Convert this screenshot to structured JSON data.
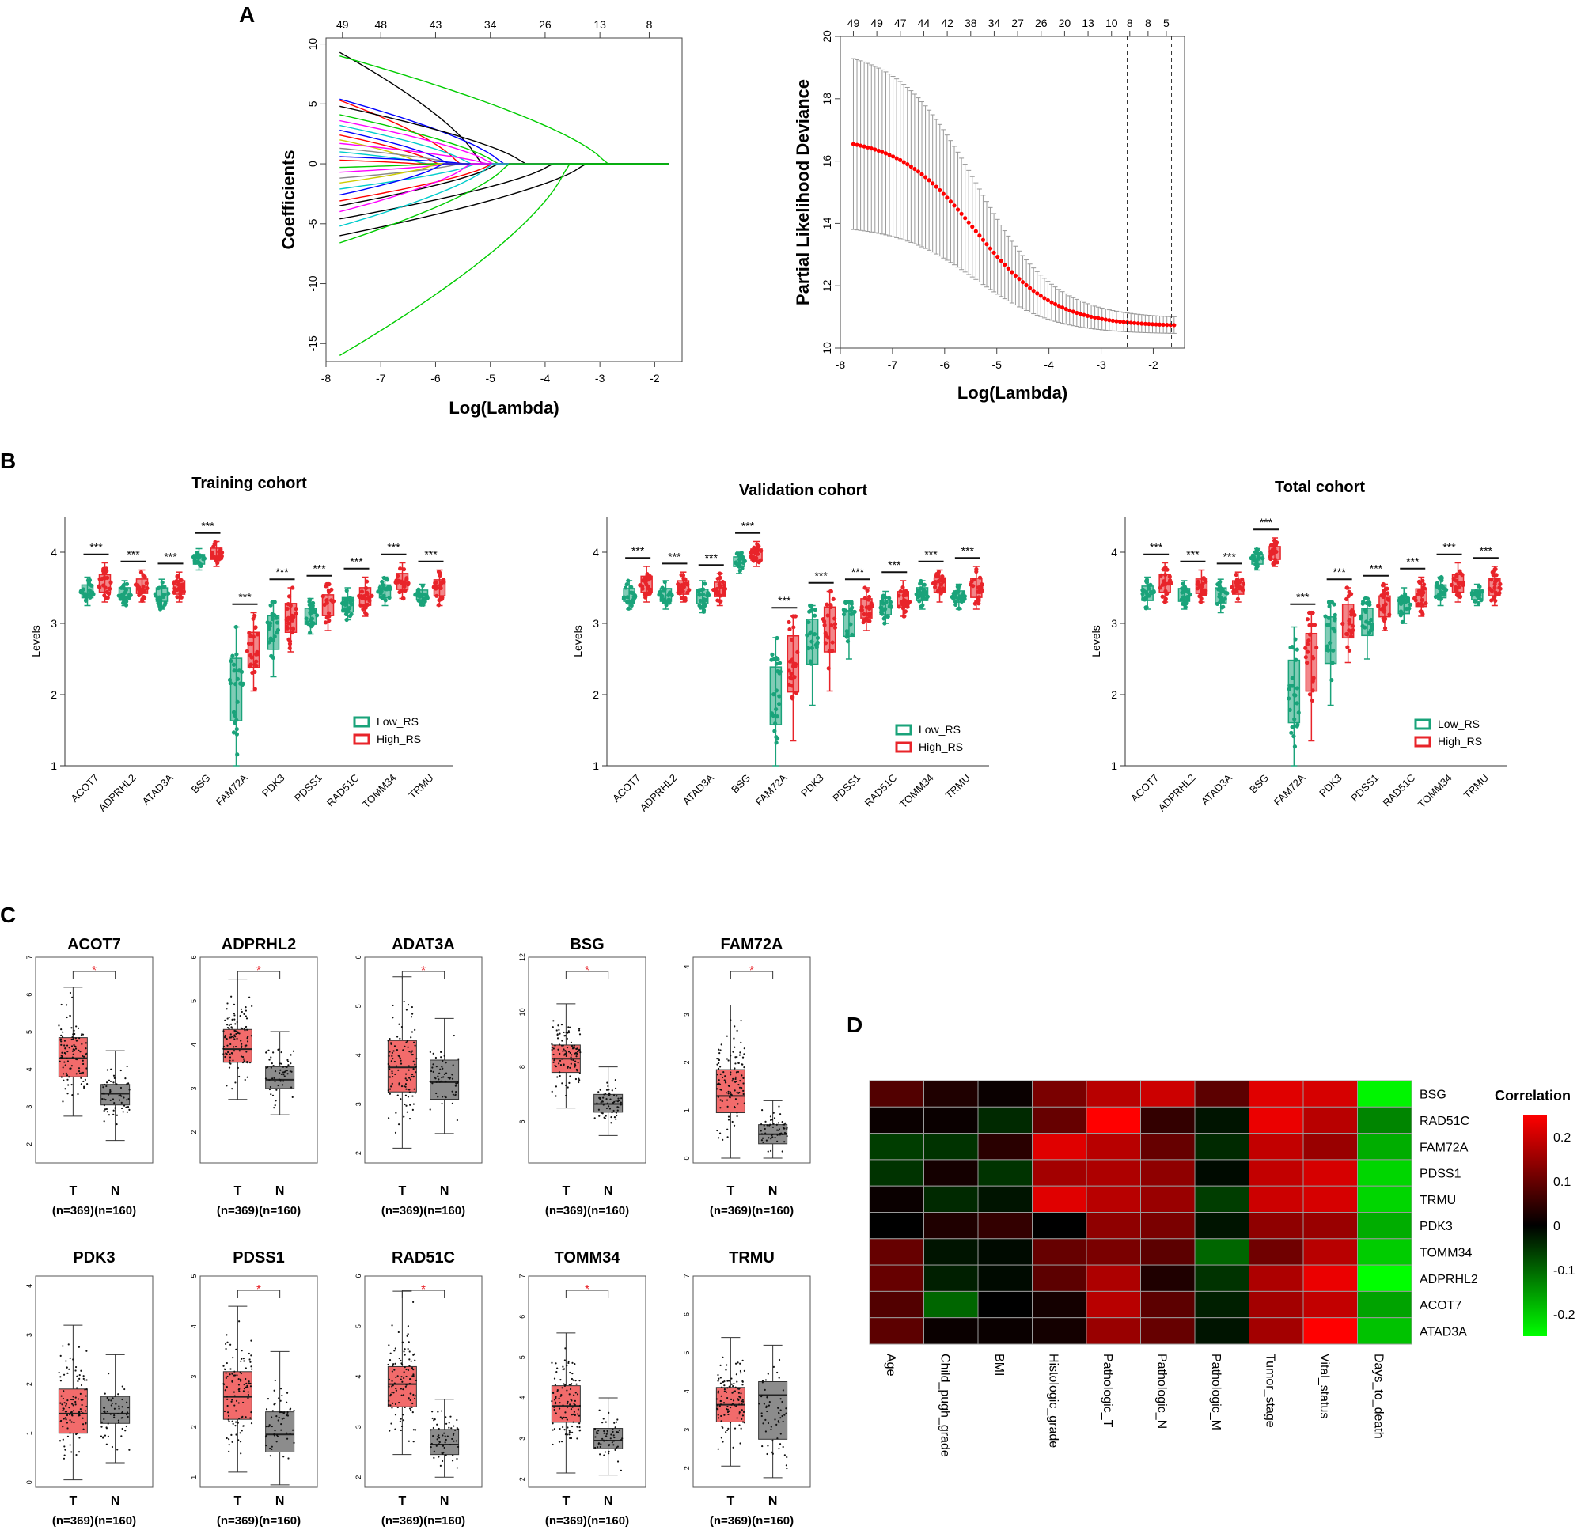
{
  "panel_labels": {
    "A": "A",
    "B": "B",
    "C": "C",
    "D": "D"
  },
  "chart_data": [
    {
      "id": "A-left",
      "type": "line",
      "title": "",
      "xlabel": "Log(Lambda)",
      "ylabel": "Coefficients",
      "xlim": [
        -8,
        -1.5
      ],
      "ylim": [
        -16.5,
        10.5
      ],
      "x_ticks": [
        "-8",
        "-7",
        "-6",
        "-5",
        "-4",
        "-3",
        "-2"
      ],
      "y_ticks": [
        "-15",
        "-10",
        "-5",
        "0",
        "5",
        "10"
      ],
      "top_axis_labels": [
        "49",
        "48",
        "43",
        "34",
        "26",
        "13",
        "8"
      ],
      "top_axis_positions": [
        -7.7,
        -7.0,
        -6.0,
        -5.0,
        -4.0,
        -3.0,
        -2.1
      ],
      "path_colors": [
        "#000000",
        "#ff0000",
        "#00cc00",
        "#0000ff",
        "#00cccc",
        "#ff00ff",
        "#cccc00",
        "#888888"
      ],
      "paths": [
        {
          "start": 9.3,
          "decay": -5.2,
          "color": "#000000"
        },
        {
          "start": 9.0,
          "decay": -2.9,
          "color": "#00cc00"
        },
        {
          "start": 5.4,
          "decay": -4.8,
          "color": "#0000ff"
        },
        {
          "start": 5.3,
          "decay": -5.6,
          "color": "#ff0000"
        },
        {
          "start": 4.8,
          "decay": -4.4,
          "color": "#000000"
        },
        {
          "start": 4.1,
          "decay": -4.9,
          "color": "#00cc00"
        },
        {
          "start": 3.6,
          "decay": -5.0,
          "color": "#ff00ff"
        },
        {
          "start": 3.2,
          "decay": -5.4,
          "color": "#00cccc"
        },
        {
          "start": 2.8,
          "decay": -5.8,
          "color": "#0000ff"
        },
        {
          "start": 2.4,
          "decay": -6.0,
          "color": "#ff0000"
        },
        {
          "start": 2.0,
          "decay": -6.3,
          "color": "#cccc00"
        },
        {
          "start": 1.7,
          "decay": -5.1,
          "color": "#ff00ff"
        },
        {
          "start": 1.3,
          "decay": -5.7,
          "color": "#888888"
        },
        {
          "start": 1.0,
          "decay": -6.2,
          "color": "#00cccc"
        },
        {
          "start": 0.6,
          "decay": -5.5,
          "color": "#0000ff"
        },
        {
          "start": 0.3,
          "decay": -6.4,
          "color": "#ff0000"
        },
        {
          "start": -0.3,
          "decay": -6.1,
          "color": "#00cc00"
        },
        {
          "start": -0.7,
          "decay": -5.8,
          "color": "#ff00ff"
        },
        {
          "start": -1.2,
          "decay": -5.6,
          "color": "#888888"
        },
        {
          "start": -1.6,
          "decay": -6.0,
          "color": "#cccc00"
        },
        {
          "start": -2.1,
          "decay": -5.3,
          "color": "#00cccc"
        },
        {
          "start": -2.6,
          "decay": -5.9,
          "color": "#0000ff"
        },
        {
          "start": -3.1,
          "decay": -5.0,
          "color": "#ff0000"
        },
        {
          "start": -3.5,
          "decay": -4.9,
          "color": "#000000"
        },
        {
          "start": -4.0,
          "decay": -5.4,
          "color": "#ff00ff"
        },
        {
          "start": -4.6,
          "decay": -3.9,
          "color": "#000000"
        },
        {
          "start": -5.2,
          "decay": -5.0,
          "color": "#00cccc"
        },
        {
          "start": -6.0,
          "decay": -3.3,
          "color": "#000000"
        },
        {
          "start": -6.6,
          "decay": -4.7,
          "color": "#00cc00"
        },
        {
          "start": -16.0,
          "decay": -3.6,
          "color": "#00cc00"
        }
      ]
    },
    {
      "id": "A-right",
      "type": "line",
      "title": "",
      "xlabel": "Log(Lambda)",
      "ylabel": "Partial Likelihood Deviance",
      "xlim": [
        -8,
        -1.4
      ],
      "ylim": [
        10,
        20
      ],
      "x_ticks": [
        "-8",
        "-7",
        "-6",
        "-5",
        "-4",
        "-3",
        "-2"
      ],
      "y_ticks": [
        "10",
        "12",
        "14",
        "16",
        "18",
        "20"
      ],
      "top_axis_labels": [
        "49",
        "49",
        "47",
        "44",
        "42",
        "38",
        "34",
        "27",
        "26",
        "20",
        "13",
        "10",
        "8",
        "8",
        "5"
      ],
      "top_axis_positions": [
        -7.75,
        -7.3,
        -6.85,
        -6.4,
        -5.95,
        -5.5,
        -5.05,
        -4.6,
        -4.15,
        -3.7,
        -3.25,
        -2.8,
        -2.45,
        -2.1,
        -1.75
      ],
      "cv_x": [
        -7.75,
        -1.6
      ],
      "cv_mean_start": 16.8,
      "cv_mean_end": 10.7,
      "cv_min_lambda": -2.5,
      "cv_1se_lambda": -1.65,
      "mean_color": "#ff0000",
      "error_bar_color": "#999999"
    },
    {
      "id": "B-training",
      "type": "box",
      "title": "Training cohort",
      "ylabel": "Levels",
      "ylim": [
        1,
        4.5
      ],
      "y_ticks": [
        "1",
        "2",
        "3",
        "4"
      ],
      "categories": [
        "ACOT7",
        "ADPRHL2",
        "ATAD3A",
        "BSG",
        "FAM72A",
        "PDK3",
        "PDSS1",
        "RAD51C",
        "TOMM34",
        "TRMU"
      ],
      "significance": [
        "***",
        "***",
        "***",
        "***",
        "***",
        "***",
        "***",
        "***",
        "***",
        "***"
      ],
      "series": [
        {
          "name": "Low_RS",
          "color": "#1aa37a",
          "medians": [
            3.45,
            3.42,
            3.4,
            3.9,
            2.15,
            2.95,
            3.1,
            3.25,
            3.45,
            3.4
          ],
          "lows": [
            3.25,
            3.25,
            3.2,
            3.75,
            1.0,
            2.25,
            2.85,
            3.05,
            3.25,
            3.25
          ],
          "highs": [
            3.65,
            3.6,
            3.62,
            4.05,
            2.95,
            3.3,
            3.35,
            3.5,
            3.65,
            3.55
          ]
        },
        {
          "name": "High_RS",
          "color": "#e8242a",
          "medians": [
            3.55,
            3.52,
            3.5,
            3.98,
            2.65,
            3.1,
            3.28,
            3.38,
            3.58,
            3.5
          ],
          "lows": [
            3.3,
            3.3,
            3.3,
            3.8,
            2.05,
            2.6,
            2.9,
            3.1,
            3.35,
            3.25
          ],
          "highs": [
            3.85,
            3.75,
            3.72,
            4.15,
            3.15,
            3.5,
            3.55,
            3.65,
            3.85,
            3.75
          ]
        }
      ]
    },
    {
      "id": "B-validation",
      "type": "box",
      "title": "Validation cohort",
      "ylabel": "Levels",
      "ylim": [
        1,
        4.5
      ],
      "y_ticks": [
        "1",
        "2",
        "3",
        "4"
      ],
      "categories": [
        "ACOT7",
        "ADPRHL2",
        "ATAD3A",
        "BSG",
        "FAM72A",
        "PDK3",
        "PDSS1",
        "RAD51C",
        "TOMM34",
        "TRMU"
      ],
      "significance": [
        "***",
        "***",
        "***",
        "***",
        "***",
        "***",
        "***",
        "***",
        "***",
        "***"
      ],
      "series": [
        {
          "name": "Low_RS",
          "color": "#1aa37a",
          "medians": [
            3.4,
            3.4,
            3.38,
            3.88,
            2.05,
            2.9,
            3.08,
            3.22,
            3.42,
            3.38
          ],
          "lows": [
            3.2,
            3.2,
            3.15,
            3.7,
            1.0,
            1.85,
            2.5,
            3.0,
            3.2,
            3.2
          ],
          "highs": [
            3.6,
            3.6,
            3.6,
            4.0,
            2.8,
            3.25,
            3.3,
            3.45,
            3.6,
            3.55
          ]
        },
        {
          "name": "High_RS",
          "color": "#e8242a",
          "medians": [
            3.55,
            3.5,
            3.48,
            3.96,
            2.6,
            3.05,
            3.22,
            3.32,
            3.55,
            3.5
          ],
          "lows": [
            3.3,
            3.3,
            3.25,
            3.8,
            1.35,
            2.05,
            2.9,
            3.1,
            3.3,
            3.2
          ],
          "highs": [
            3.8,
            3.72,
            3.7,
            4.15,
            3.1,
            3.45,
            3.5,
            3.6,
            3.75,
            3.8
          ]
        }
      ]
    },
    {
      "id": "B-total",
      "type": "box",
      "title": "Total  cohort",
      "ylabel": "Levels",
      "ylim": [
        1,
        4.5
      ],
      "y_ticks": [
        "1",
        "2",
        "3",
        "4"
      ],
      "categories": [
        "ACOT7",
        "ADPRHL2",
        "ATAD3A",
        "BSG",
        "FAM72A",
        "PDK3",
        "PDSS1",
        "RAD51C",
        "TOMM34",
        "TRMU"
      ],
      "significance": [
        "***",
        "***",
        "***",
        "***",
        "***",
        "***",
        "***",
        "***",
        "***",
        "***"
      ],
      "series": [
        {
          "name": "Low_RS",
          "color": "#1aa37a",
          "medians": [
            3.42,
            3.4,
            3.4,
            3.9,
            2.1,
            2.92,
            3.1,
            3.25,
            3.45,
            3.4
          ],
          "lows": [
            3.2,
            3.2,
            3.15,
            3.75,
            1.0,
            1.85,
            2.5,
            3.0,
            3.25,
            3.25
          ],
          "highs": [
            3.65,
            3.6,
            3.62,
            4.05,
            2.95,
            3.3,
            3.35,
            3.5,
            3.65,
            3.55
          ]
        },
        {
          "name": "High_RS",
          "color": "#e8242a",
          "medians": [
            3.55,
            3.52,
            3.5,
            3.98,
            2.62,
            3.08,
            3.25,
            3.35,
            3.55,
            3.5
          ],
          "lows": [
            3.3,
            3.3,
            3.3,
            3.8,
            1.35,
            2.45,
            2.9,
            3.1,
            3.3,
            3.25
          ],
          "highs": [
            3.85,
            3.75,
            3.72,
            4.2,
            3.15,
            3.5,
            3.55,
            3.65,
            3.85,
            3.8
          ]
        }
      ]
    },
    {
      "id": "C",
      "type": "box",
      "groups": [
        "T",
        "N"
      ],
      "group_counts": [
        "(n=369)",
        "(n=160)"
      ],
      "group_colors": {
        "T": "#f26b6b",
        "N": "#8c8c8c"
      },
      "panels": [
        {
          "gene": "ACOT7",
          "sig": "*",
          "ymax": 7,
          "ymin": 1.5,
          "y_ticks": [
            "2",
            "3",
            "4",
            "5",
            "6",
            "7"
          ],
          "T": {
            "q1": 3.8,
            "med": 4.3,
            "q3": 4.85,
            "lo": 2.75,
            "hi": 6.2
          },
          "N": {
            "q1": 3.05,
            "med": 3.35,
            "q3": 3.6,
            "lo": 2.1,
            "hi": 4.5
          }
        },
        {
          "gene": "ADPRHL2",
          "sig": "*",
          "ymax": 6,
          "ymin": 1.3,
          "y_ticks": [
            "2",
            "3",
            "4",
            "5",
            "6"
          ],
          "T": {
            "q1": 3.6,
            "med": 3.9,
            "q3": 4.35,
            "lo": 2.75,
            "hi": 5.5
          },
          "N": {
            "q1": 3.0,
            "med": 3.2,
            "q3": 3.5,
            "lo": 2.4,
            "hi": 4.3
          }
        },
        {
          "gene": "ADAT3A",
          "sig": "*",
          "ymax": 6,
          "ymin": 1.8,
          "y_ticks": [
            "2",
            "3",
            "4",
            "5",
            "6"
          ],
          "T": {
            "q1": 3.25,
            "med": 3.75,
            "q3": 4.3,
            "lo": 2.1,
            "hi": 5.6
          },
          "N": {
            "q1": 3.1,
            "med": 3.45,
            "q3": 3.9,
            "lo": 2.4,
            "hi": 4.75
          }
        },
        {
          "gene": "BSG",
          "sig": "*",
          "ymax": 12,
          "ymin": 4.5,
          "y_ticks": [
            "6",
            "8",
            "10",
            "12"
          ],
          "T": {
            "q1": 7.8,
            "med": 8.3,
            "q3": 8.8,
            "lo": 6.5,
            "hi": 10.3
          },
          "N": {
            "q1": 6.35,
            "med": 6.65,
            "q3": 7.0,
            "lo": 5.5,
            "hi": 8.0
          }
        },
        {
          "gene": "FAM72A",
          "sig": "*",
          "ymax": 4.2,
          "ymin": -0.1,
          "y_ticks": [
            "0",
            "1",
            "2",
            "3",
            "4"
          ],
          "T": {
            "q1": 0.95,
            "med": 1.3,
            "q3": 1.85,
            "lo": 0.0,
            "hi": 3.2
          },
          "N": {
            "q1": 0.3,
            "med": 0.5,
            "q3": 0.7,
            "lo": 0.0,
            "hi": 1.2
          }
        },
        {
          "gene": "PDK3",
          "sig": "",
          "ymax": 4.2,
          "ymin": -0.1,
          "y_ticks": [
            "0",
            "1",
            "2",
            "3",
            "4"
          ],
          "T": {
            "q1": 1.0,
            "med": 1.4,
            "q3": 1.9,
            "lo": 0.05,
            "hi": 3.2
          },
          "N": {
            "q1": 1.2,
            "med": 1.4,
            "q3": 1.75,
            "lo": 0.4,
            "hi": 2.6
          }
        },
        {
          "gene": "PDSS1",
          "sig": "*",
          "ymax": 5,
          "ymin": 0.8,
          "y_ticks": [
            "1",
            "2",
            "3",
            "4",
            "5"
          ],
          "T": {
            "q1": 2.15,
            "med": 2.6,
            "q3": 3.1,
            "lo": 1.1,
            "hi": 4.4
          },
          "N": {
            "q1": 1.5,
            "med": 1.85,
            "q3": 2.3,
            "lo": 0.85,
            "hi": 3.5
          }
        },
        {
          "gene": "RAD51C",
          "sig": "*",
          "ymax": 6,
          "ymin": 1.8,
          "y_ticks": [
            "2",
            "3",
            "4",
            "5",
            "6"
          ],
          "T": {
            "q1": 3.4,
            "med": 3.85,
            "q3": 4.2,
            "lo": 2.45,
            "hi": 5.7
          },
          "N": {
            "q1": 2.45,
            "med": 2.65,
            "q3": 2.95,
            "lo": 2.0,
            "hi": 3.55
          }
        },
        {
          "gene": "TOMM34",
          "sig": "*",
          "ymax": 7,
          "ymin": 1.8,
          "y_ticks": [
            "2",
            "3",
            "4",
            "5",
            "6",
            "7"
          ],
          "T": {
            "q1": 3.4,
            "med": 3.8,
            "q3": 4.3,
            "lo": 2.15,
            "hi": 5.6
          },
          "N": {
            "q1": 2.75,
            "med": 2.95,
            "q3": 3.25,
            "lo": 2.1,
            "hi": 4.0
          }
        },
        {
          "gene": "TRMU",
          "sig": "",
          "ymax": 7,
          "ymin": 1.5,
          "y_ticks": [
            "2",
            "3",
            "4",
            "5",
            "6",
            "7"
          ],
          "T": {
            "q1": 3.2,
            "med": 3.65,
            "q3": 4.1,
            "lo": 2.05,
            "hi": 5.4
          },
          "N": {
            "q1": 2.75,
            "med": 3.9,
            "q3": 4.25,
            "lo": 1.75,
            "hi": 5.2
          }
        }
      ]
    },
    {
      "id": "D",
      "type": "heatmap",
      "legend_title": "Correlation",
      "legend_ticks": [
        "0.2",
        "0.1",
        "0",
        "-0.1",
        "-0.2"
      ],
      "legend_tick_values": [
        0.2,
        0.1,
        0,
        -0.1,
        -0.2
      ],
      "vmin": -0.25,
      "vmax": 0.25,
      "rows": [
        "BSG",
        "RAD51C",
        "FAM72A",
        "PDSS1",
        "TRMU",
        "PDK3",
        "TOMM34",
        "ADPRHL2",
        "ACOT7",
        "ATAD3A"
      ],
      "columns": [
        "Age",
        "Child_pugh_grade",
        "BMI",
        "Histologic_grade",
        "Pathologic_T",
        "Pathologic_N",
        "Pathologic_M",
        "Tumor_stage",
        "Vital_status",
        "Days_to_death"
      ],
      "values": [
        [
          0.08,
          0.03,
          0.01,
          0.12,
          0.18,
          0.2,
          0.09,
          0.22,
          0.21,
          -0.24
        ],
        [
          0.01,
          0.01,
          -0.04,
          0.1,
          0.25,
          0.05,
          -0.02,
          0.23,
          0.18,
          -0.13
        ],
        [
          -0.06,
          -0.05,
          0.04,
          0.22,
          0.18,
          0.1,
          -0.04,
          0.19,
          0.15,
          -0.17
        ],
        [
          -0.05,
          0.02,
          -0.05,
          0.16,
          0.17,
          0.14,
          -0.01,
          0.19,
          0.21,
          -0.21
        ],
        [
          0.01,
          -0.04,
          -0.02,
          0.22,
          0.18,
          0.15,
          -0.06,
          0.2,
          0.21,
          -0.21
        ],
        [
          0.0,
          0.03,
          0.05,
          0.0,
          0.14,
          0.12,
          -0.02,
          0.14,
          0.15,
          -0.17
        ],
        [
          0.1,
          -0.02,
          -0.01,
          0.1,
          0.12,
          0.09,
          -0.1,
          0.11,
          0.18,
          -0.2
        ],
        [
          0.1,
          -0.03,
          -0.01,
          0.09,
          0.17,
          0.03,
          -0.05,
          0.17,
          0.23,
          -0.26
        ],
        [
          0.08,
          -0.1,
          0.0,
          0.02,
          0.18,
          0.09,
          -0.03,
          0.16,
          0.19,
          -0.16
        ],
        [
          0.09,
          0.01,
          0.01,
          0.02,
          0.15,
          0.1,
          -0.02,
          0.16,
          0.26,
          -0.19
        ]
      ]
    }
  ]
}
